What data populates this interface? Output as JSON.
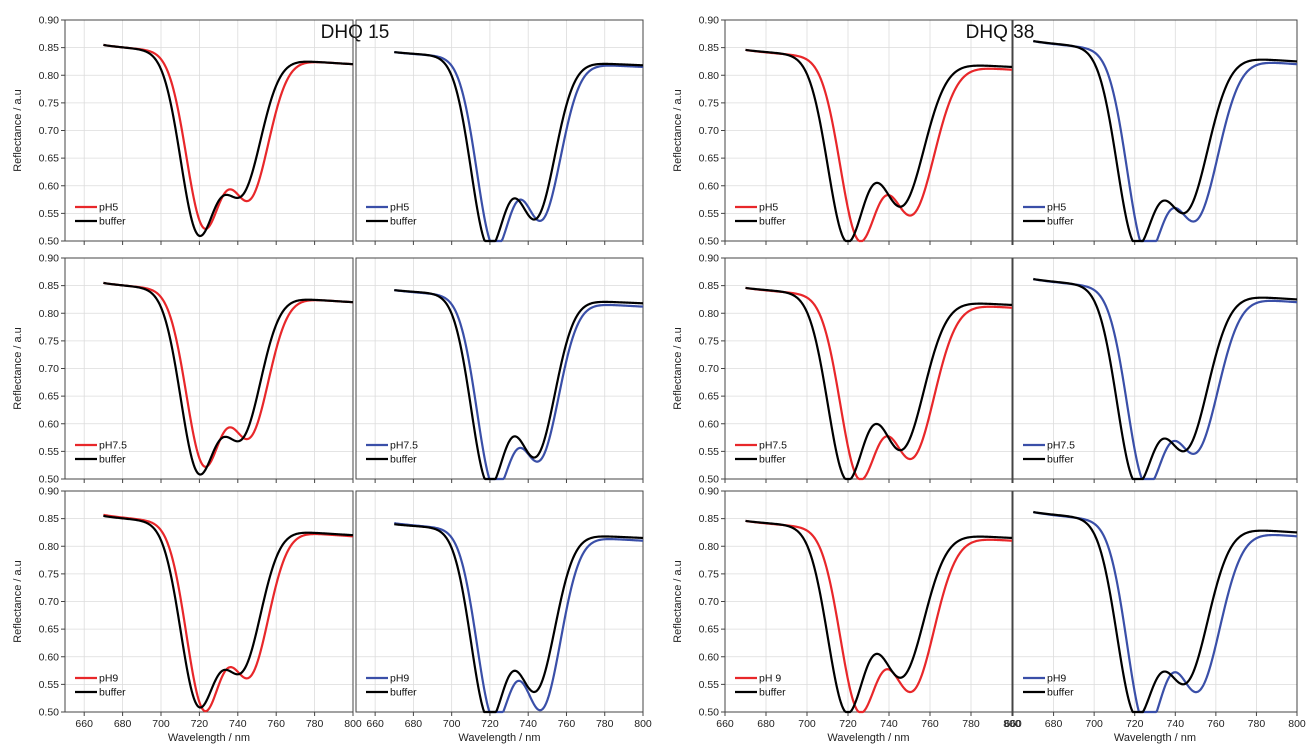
{
  "figure": {
    "groups": [
      {
        "title": "DHQ 15"
      },
      {
        "title": "DHQ 38"
      }
    ]
  },
  "colors": {
    "red": "#e8272a",
    "blue": "#3a4fa8",
    "black": "#000000",
    "grid": "#dcdcdc",
    "frame": "#444444"
  },
  "chart_data": [
    {
      "type": "line",
      "group": "DHQ 15",
      "row": 1,
      "col": 1,
      "title": "DHQ 15",
      "ylabel": "Reflectance / a.u",
      "xlabel": "",
      "xlim": [
        650,
        800
      ],
      "ylim": [
        0.5,
        0.9
      ],
      "series": [
        {
          "name": "pH5",
          "color": "red",
          "curve": {
            "start": 0.855,
            "end": 0.82,
            "peaks": [
              {
                "x": 722,
                "depth": 0.3,
                "w": 9
              },
              {
                "x": 746,
                "depth": 0.25,
                "w": 10
              }
            ]
          }
        },
        {
          "name": "buffer",
          "color": "black",
          "curve": {
            "start": 0.855,
            "end": 0.82,
            "peaks": [
              {
                "x": 719,
                "depth": 0.31,
                "w": 9
              },
              {
                "x": 742,
                "depth": 0.24,
                "w": 10
              }
            ]
          }
        }
      ]
    },
    {
      "type": "line",
      "group": "DHQ 15",
      "row": 1,
      "col": 2,
      "title": "",
      "ylabel": "",
      "xlabel": "",
      "xlim": [
        650,
        800
      ],
      "ylim": [
        0.5,
        0.9
      ],
      "series": [
        {
          "name": "pH5",
          "color": "blue",
          "curve": {
            "start": 0.842,
            "end": 0.815,
            "peaks": [
              {
                "x": 722,
                "depth": 0.33,
                "w": 9
              },
              {
                "x": 747,
                "depth": 0.28,
                "w": 10
              }
            ]
          }
        },
        {
          "name": "buffer",
          "color": "black",
          "curve": {
            "start": 0.842,
            "end": 0.818,
            "peaks": [
              {
                "x": 719,
                "depth": 0.33,
                "w": 9
              },
              {
                "x": 744,
                "depth": 0.28,
                "w": 10
              }
            ]
          }
        }
      ]
    },
    {
      "type": "line",
      "group": "DHQ 38",
      "row": 1,
      "col": 3,
      "title": "DHQ 38",
      "ylabel": "Reflectance / a.u",
      "xlabel": "",
      "xlim": [
        660,
        800
      ],
      "ylim": [
        0.5,
        0.9
      ],
      "series": [
        {
          "name": "pH5",
          "color": "red",
          "curve": {
            "start": 0.846,
            "end": 0.81,
            "peaks": [
              {
                "x": 725,
                "depth": 0.31,
                "w": 9
              },
              {
                "x": 751,
                "depth": 0.27,
                "w": 11
              }
            ]
          }
        },
        {
          "name": "buffer",
          "color": "black",
          "curve": {
            "start": 0.846,
            "end": 0.815,
            "peaks": [
              {
                "x": 719,
                "depth": 0.32,
                "w": 9
              },
              {
                "x": 746,
                "depth": 0.26,
                "w": 11
              }
            ]
          }
        }
      ]
    },
    {
      "type": "line",
      "group": "DHQ 38",
      "row": 1,
      "col": 4,
      "title": "",
      "ylabel": "",
      "xlabel": "",
      "xlim": [
        660,
        800
      ],
      "ylim": [
        0.5,
        0.9
      ],
      "series": [
        {
          "name": "pH5",
          "color": "blue",
          "curve": {
            "start": 0.862,
            "end": 0.82,
            "peaks": [
              {
                "x": 725,
                "depth": 0.34,
                "w": 9
              },
              {
                "x": 750,
                "depth": 0.29,
                "w": 11
              }
            ]
          }
        },
        {
          "name": "buffer",
          "color": "black",
          "curve": {
            "start": 0.862,
            "end": 0.825,
            "peaks": [
              {
                "x": 720,
                "depth": 0.33,
                "w": 9
              },
              {
                "x": 745,
                "depth": 0.28,
                "w": 11
              }
            ]
          }
        }
      ]
    },
    {
      "type": "line",
      "group": "DHQ 15",
      "row": 2,
      "col": 1,
      "title": "",
      "ylabel": "Reflectance / a.u",
      "xlabel": "",
      "xlim": [
        650,
        800
      ],
      "ylim": [
        0.5,
        0.9
      ],
      "series": [
        {
          "name": "pH7.5",
          "color": "red",
          "curve": {
            "start": 0.855,
            "end": 0.82,
            "peaks": [
              {
                "x": 722,
                "depth": 0.3,
                "w": 9
              },
              {
                "x": 746,
                "depth": 0.25,
                "w": 10
              }
            ]
          }
        },
        {
          "name": "buffer",
          "color": "black",
          "curve": {
            "start": 0.855,
            "end": 0.82,
            "peaks": [
              {
                "x": 719,
                "depth": 0.31,
                "w": 9
              },
              {
                "x": 742,
                "depth": 0.25,
                "w": 10
              }
            ]
          }
        }
      ]
    },
    {
      "type": "line",
      "group": "DHQ 15",
      "row": 2,
      "col": 2,
      "title": "",
      "ylabel": "",
      "xlabel": "",
      "xlim": [
        650,
        800
      ],
      "ylim": [
        0.5,
        0.9
      ],
      "series": [
        {
          "name": "pH7.5",
          "color": "blue",
          "curve": {
            "start": 0.842,
            "end": 0.812,
            "peaks": [
              {
                "x": 722,
                "depth": 0.33,
                "w": 9
              },
              {
                "x": 746,
                "depth": 0.28,
                "w": 10
              }
            ]
          }
        },
        {
          "name": "buffer",
          "color": "black",
          "curve": {
            "start": 0.842,
            "end": 0.818,
            "peaks": [
              {
                "x": 719,
                "depth": 0.33,
                "w": 9
              },
              {
                "x": 744,
                "depth": 0.28,
                "w": 10
              }
            ]
          }
        }
      ]
    },
    {
      "type": "line",
      "group": "DHQ 38",
      "row": 2,
      "col": 3,
      "title": "",
      "ylabel": "Reflectance / a.u",
      "xlabel": "",
      "xlim": [
        660,
        800
      ],
      "ylim": [
        0.5,
        0.9
      ],
      "series": [
        {
          "name": "pH7.5",
          "color": "red",
          "curve": {
            "start": 0.846,
            "end": 0.81,
            "peaks": [
              {
                "x": 725,
                "depth": 0.31,
                "w": 9
              },
              {
                "x": 751,
                "depth": 0.28,
                "w": 11
              }
            ]
          }
        },
        {
          "name": "buffer",
          "color": "black",
          "curve": {
            "start": 0.846,
            "end": 0.815,
            "peaks": [
              {
                "x": 719,
                "depth": 0.32,
                "w": 9
              },
              {
                "x": 746,
                "depth": 0.27,
                "w": 11
              }
            ]
          }
        }
      ]
    },
    {
      "type": "line",
      "group": "DHQ 38",
      "row": 2,
      "col": 4,
      "title": "",
      "ylabel": "",
      "xlabel": "",
      "xlim": [
        660,
        800
      ],
      "ylim": [
        0.5,
        0.9
      ],
      "series": [
        {
          "name": "pH7.5",
          "color": "blue",
          "curve": {
            "start": 0.862,
            "end": 0.82,
            "peaks": [
              {
                "x": 725,
                "depth": 0.33,
                "w": 9
              },
              {
                "x": 750,
                "depth": 0.28,
                "w": 11
              }
            ]
          }
        },
        {
          "name": "buffer",
          "color": "black",
          "curve": {
            "start": 0.862,
            "end": 0.825,
            "peaks": [
              {
                "x": 720,
                "depth": 0.33,
                "w": 9
              },
              {
                "x": 745,
                "depth": 0.28,
                "w": 11
              }
            ]
          }
        }
      ]
    },
    {
      "type": "line",
      "group": "DHQ 15",
      "row": 3,
      "col": 1,
      "title": "",
      "ylabel": "Reflectance / a.u",
      "xlabel": "Wavelength / nm",
      "xlim": [
        650,
        800
      ],
      "ylim": [
        0.5,
        0.9
      ],
      "series": [
        {
          "name": "pH9",
          "color": "red",
          "curve": {
            "start": 0.857,
            "end": 0.818,
            "peaks": [
              {
                "x": 722,
                "depth": 0.32,
                "w": 9
              },
              {
                "x": 746,
                "depth": 0.26,
                "w": 10
              }
            ]
          }
        },
        {
          "name": "buffer",
          "color": "black",
          "curve": {
            "start": 0.855,
            "end": 0.82,
            "peaks": [
              {
                "x": 719,
                "depth": 0.31,
                "w": 9
              },
              {
                "x": 742,
                "depth": 0.25,
                "w": 10
              }
            ]
          }
        }
      ]
    },
    {
      "type": "line",
      "group": "DHQ 15",
      "row": 3,
      "col": 2,
      "title": "",
      "ylabel": "",
      "xlabel": "Wavelength / nm",
      "xlim": [
        650,
        800
      ],
      "ylim": [
        0.5,
        0.9
      ],
      "series": [
        {
          "name": "pH9",
          "color": "blue",
          "curve": {
            "start": 0.842,
            "end": 0.81,
            "peaks": [
              {
                "x": 722,
                "depth": 0.33,
                "w": 9
              },
              {
                "x": 747,
                "depth": 0.31,
                "w": 10
              }
            ]
          }
        },
        {
          "name": "buffer",
          "color": "black",
          "curve": {
            "start": 0.84,
            "end": 0.815,
            "peaks": [
              {
                "x": 719,
                "depth": 0.33,
                "w": 9
              },
              {
                "x": 744,
                "depth": 0.28,
                "w": 10
              }
            ]
          }
        }
      ]
    },
    {
      "type": "line",
      "group": "DHQ 38",
      "row": 3,
      "col": 3,
      "title": "",
      "ylabel": "Reflectance / a.u",
      "xlabel": "Wavelength / nm",
      "xlim": [
        660,
        800
      ],
      "ylim": [
        0.5,
        0.9
      ],
      "series": [
        {
          "name": "pH 9",
          "color": "red",
          "curve": {
            "start": 0.846,
            "end": 0.81,
            "peaks": [
              {
                "x": 725,
                "depth": 0.31,
                "w": 9
              },
              {
                "x": 751,
                "depth": 0.28,
                "w": 11
              }
            ]
          }
        },
        {
          "name": "buffer",
          "color": "black",
          "curve": {
            "start": 0.846,
            "end": 0.815,
            "peaks": [
              {
                "x": 719,
                "depth": 0.32,
                "w": 9
              },
              {
                "x": 746,
                "depth": 0.26,
                "w": 11
              }
            ]
          }
        }
      ]
    },
    {
      "type": "line",
      "group": "DHQ 38",
      "row": 3,
      "col": 4,
      "title": "",
      "ylabel": "",
      "xlabel": "Wavelength / nm",
      "xlim": [
        660,
        800
      ],
      "ylim": [
        0.5,
        0.9
      ],
      "series": [
        {
          "name": "pH9",
          "color": "blue",
          "curve": {
            "start": 0.862,
            "end": 0.818,
            "peaks": [
              {
                "x": 725,
                "depth": 0.35,
                "w": 9
              },
              {
                "x": 751,
                "depth": 0.29,
                "w": 11
              }
            ]
          }
        },
        {
          "name": "buffer",
          "color": "black",
          "curve": {
            "start": 0.862,
            "end": 0.825,
            "peaks": [
              {
                "x": 720,
                "depth": 0.33,
                "w": 9
              },
              {
                "x": 745,
                "depth": 0.28,
                "w": 11
              }
            ]
          }
        }
      ]
    }
  ]
}
